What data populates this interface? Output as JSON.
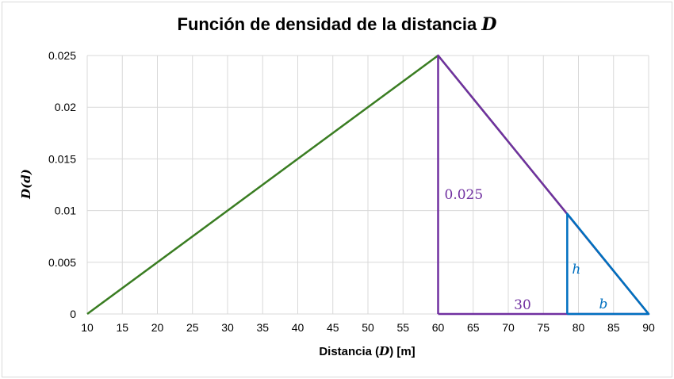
{
  "chart_data": {
    "type": "line",
    "title": "Función de densidad de la distancia ",
    "title_var": "D",
    "xlabel_pre": "Distancia (",
    "xlabel_var": "D",
    "xlabel_post": ") [m]",
    "ylabel": "D(d)",
    "xlim": [
      10,
      90
    ],
    "ylim": [
      0,
      0.025
    ],
    "x_ticks": [
      10,
      15,
      20,
      25,
      30,
      35,
      40,
      45,
      50,
      55,
      60,
      65,
      70,
      75,
      80,
      85,
      90
    ],
    "y_ticks": [
      0,
      0.005,
      0.01,
      0.015,
      0.02,
      0.025
    ],
    "y_tick_labels": [
      "0",
      "0.005",
      "0.01",
      "0.015",
      "0.02",
      "0.025"
    ],
    "grid": true,
    "series": [
      {
        "color": "#3a7d22",
        "x": [
          10,
          60,
          90
        ],
        "y": [
          0,
          0.025,
          0
        ]
      }
    ],
    "annotations": {
      "big_triangle": {
        "color": "#7030a0",
        "x": [
          60,
          60,
          90,
          60
        ],
        "y": [
          0,
          0.025,
          0,
          0
        ],
        "height_label": "0.025",
        "base_label": "30"
      },
      "small_triangle": {
        "color": "#0070c0",
        "x": [
          78.4,
          78.4,
          90,
          78.4
        ],
        "y": [
          0,
          0.0097,
          0,
          0
        ],
        "height_label": "h",
        "base_label": "b"
      }
    }
  }
}
